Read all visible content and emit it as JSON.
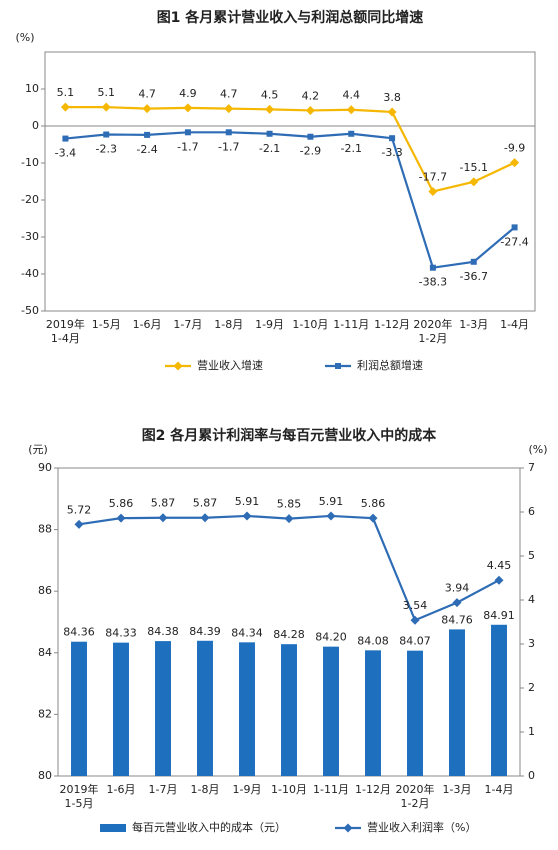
{
  "chart_data": [
    {
      "type": "line",
      "title": "图1  各月累计营业收入与利润总额同比增速",
      "y_label": "(%)",
      "categories": [
        "2019年\n1-4月",
        "1-5月",
        "1-6月",
        "1-7月",
        "1-8月",
        "1-9月",
        "1-10月",
        "1-11月",
        "1-12月",
        "2020年\n1-2月",
        "1-3月",
        "1-4月"
      ],
      "series": [
        {
          "name": "营业收入增速",
          "color": "#f5b700",
          "marker": "diamond",
          "values": [
            5.1,
            5.1,
            4.7,
            4.9,
            4.7,
            4.5,
            4.2,
            4.4,
            3.8,
            -17.7,
            -15.1,
            -9.9
          ]
        },
        {
          "name": "利润总额增速",
          "color": "#2e6cb5",
          "marker": "square",
          "values": [
            -3.4,
            -2.3,
            -2.4,
            -1.7,
            -1.7,
            -2.1,
            -2.9,
            -2.1,
            -3.3,
            -38.3,
            -36.7,
            -27.4
          ]
        }
      ],
      "ylim": [
        -50,
        20
      ],
      "yticks": [
        -50,
        -40,
        -30,
        -20,
        -10,
        0,
        10
      ]
    },
    {
      "type": "bar",
      "title": "图2  各月累计利润率与每百元营业收入中的成本",
      "y_label": "(元)",
      "y2_label": "(%)",
      "categories": [
        "2019年\n1-5月",
        "1-6月",
        "1-7月",
        "1-8月",
        "1-9月",
        "1-10月",
        "1-11月",
        "1-12月",
        "2020年\n1-2月",
        "1-3月",
        "1-4月"
      ],
      "series": [
        {
          "name": "每百元营业收入中的成本（元）",
          "type": "bar",
          "color": "#1f6fbf",
          "values": [
            84.36,
            84.33,
            84.38,
            84.39,
            84.34,
            84.28,
            84.2,
            84.08,
            84.07,
            84.76,
            84.91
          ],
          "value_labels": [
            "84.36",
            "84.33",
            "84.38",
            "84.39",
            "84.34",
            "84.28",
            "84.20",
            "84.08",
            "84.07",
            "84.76",
            "84.91"
          ]
        },
        {
          "name": "营业收入利润率（%）",
          "type": "line",
          "axis": "y2",
          "color": "#2e6cb5",
          "marker": "diamond",
          "values": [
            5.72,
            5.86,
            5.87,
            5.87,
            5.91,
            5.85,
            5.91,
            5.86,
            3.54,
            3.94,
            4.45
          ]
        }
      ],
      "ylim": [
        80,
        90
      ],
      "yticks": [
        80,
        82,
        84,
        86,
        88,
        90
      ],
      "y2lim": [
        0,
        7
      ],
      "y2ticks": [
        0,
        1,
        2,
        3,
        4,
        5,
        6,
        7
      ]
    }
  ]
}
